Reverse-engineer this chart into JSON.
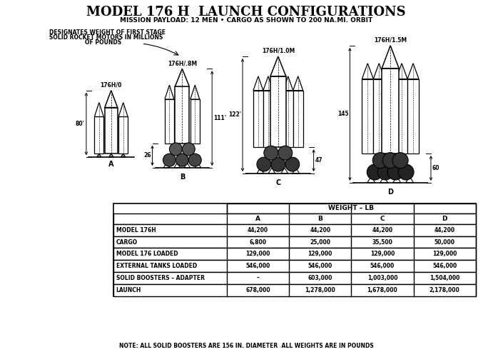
{
  "title": "MODEL 176 H  LAUNCH CONFIGURATIONS",
  "subtitle": "MISSION PAYLOAD: 12 MEN • CARGO AS SHOWN TO 200 NA.MI. ORBIT",
  "note": "NOTE: ALL SOLID BOOSTERS ARE 156 IN. DIAMETER  ALL WEIGHTS ARE IN POUNDS",
  "designates_line1": "DESIGNATES WEIGHT OF FIRST STAGE",
  "designates_line2": "SOLID ROCKET MOTORS IN MILLIONS",
  "designates_line3": "OF POUNDS",
  "config_labels": [
    "176H/0",
    "176H/.8M",
    "176H/1.0M",
    "176H/1.5M"
  ],
  "heights": [
    "80'",
    "111'",
    "122'",
    "145"
  ],
  "lower_heights": [
    "",
    "26",
    "47",
    "60"
  ],
  "table_header": "WEIGHT – LB",
  "row_labels": [
    "MODEL 176H",
    "CARGO",
    "MODEL 176 LOADED",
    "EXTERNAL TANKS LOADED",
    "SOLID BOOSTERS – ADAPTER",
    "LAUNCH"
  ],
  "col_A": [
    "44,200",
    "6,800",
    "129,000",
    "546,000",
    "–",
    "678,000"
  ],
  "col_B": [
    "44,200",
    "25,000",
    "129,000",
    "546,000",
    "603,000",
    "1,278,000"
  ],
  "col_C": [
    "44,200",
    "35,500",
    "129,000",
    "546,000",
    "1,003,000",
    "1,678,000"
  ],
  "col_D": [
    "44,200",
    "50,000",
    "129,000",
    "546,000",
    "1,504,000",
    "2,178,000"
  ],
  "bg_color": "#ffffff",
  "text_color": "#000000"
}
